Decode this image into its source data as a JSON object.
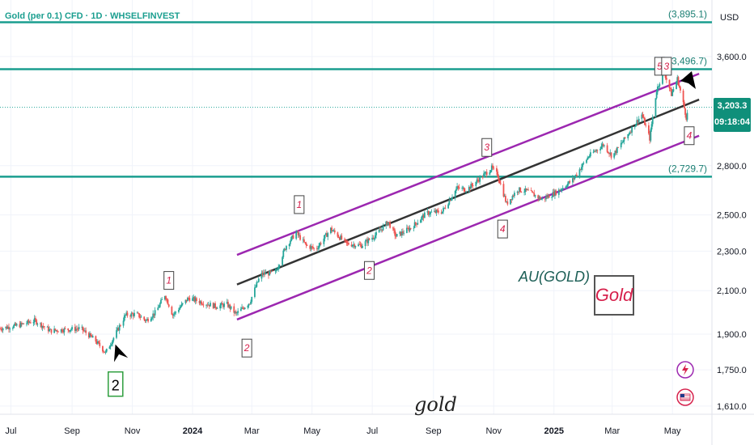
{
  "header": {
    "title": "Gold (per 0.1) CFD · 1D · WHSELFINVEST",
    "currency": "USD"
  },
  "price_tag": {
    "price": "3,203.3",
    "countdown": "09:18:04"
  },
  "labels": {
    "au_gold": "AU(GOLD)",
    "gold_box": "Gold",
    "gold_script": "gold"
  },
  "colors": {
    "up": "#26a69a",
    "down": "#ef5350",
    "level": "#1a9e8f",
    "channel": "#9c27b0",
    "midline": "#333333",
    "wave_label": "#d6204b"
  },
  "chart_data": {
    "type": "candlestick",
    "y_scale": "log",
    "ylim": [
      1580,
      4100
    ],
    "y_ticks": [
      {
        "v": 3600,
        "label": "3,600.0"
      },
      {
        "v": 2800,
        "label": "2,800.0"
      },
      {
        "v": 2500,
        "label": "2,500.0"
      },
      {
        "v": 2300,
        "label": "2,300.0"
      },
      {
        "v": 2100,
        "label": "2,100.0"
      },
      {
        "v": 1900,
        "label": "1,900.0"
      },
      {
        "v": 1750,
        "label": "1,750.0"
      },
      {
        "v": 1610,
        "label": "1,610.0"
      }
    ],
    "x_ticks": [
      {
        "t": "2023-07-01",
        "label": "Jul"
      },
      {
        "t": "2023-09-01",
        "label": "Sep"
      },
      {
        "t": "2023-11-01",
        "label": "Nov"
      },
      {
        "t": "2024-01-01",
        "label": "2024",
        "bold": true
      },
      {
        "t": "2024-03-01",
        "label": "Mar"
      },
      {
        "t": "2024-05-01",
        "label": "May"
      },
      {
        "t": "2024-07-01",
        "label": "Jul"
      },
      {
        "t": "2024-09-01",
        "label": "Sep"
      },
      {
        "t": "2024-11-01",
        "label": "Nov"
      },
      {
        "t": "2025-01-01",
        "label": "2025",
        "bold": true
      },
      {
        "t": "2025-03-01",
        "label": "Mar"
      },
      {
        "t": "2025-05-01",
        "label": "May"
      }
    ],
    "price_path": [
      [
        "2023-06-20",
        1925
      ],
      [
        "2023-07-10",
        1940
      ],
      [
        "2023-07-25",
        1960
      ],
      [
        "2023-08-10",
        1915
      ],
      [
        "2023-08-25",
        1920
      ],
      [
        "2023-09-10",
        1925
      ],
      [
        "2023-09-25",
        1870
      ],
      [
        "2023-10-05",
        1820
      ],
      [
        "2023-10-15",
        1900
      ],
      [
        "2023-10-25",
        1985
      ],
      [
        "2023-11-05",
        1990
      ],
      [
        "2023-11-15",
        1960
      ],
      [
        "2023-11-25",
        2000
      ],
      [
        "2023-12-04",
        2080
      ],
      [
        "2023-12-12",
        1985
      ],
      [
        "2023-12-28",
        2065
      ],
      [
        "2024-01-10",
        2045
      ],
      [
        "2024-01-25",
        2025
      ],
      [
        "2024-02-05",
        2035
      ],
      [
        "2024-02-14",
        1990
      ],
      [
        "2024-02-28",
        2045
      ],
      [
        "2024-03-10",
        2180
      ],
      [
        "2024-03-25",
        2190
      ],
      [
        "2024-04-05",
        2330
      ],
      [
        "2024-04-15",
        2400
      ],
      [
        "2024-04-25",
        2330
      ],
      [
        "2024-05-05",
        2310
      ],
      [
        "2024-05-20",
        2420
      ],
      [
        "2024-06-05",
        2340
      ],
      [
        "2024-06-20",
        2330
      ],
      [
        "2024-07-05",
        2390
      ],
      [
        "2024-07-17",
        2460
      ],
      [
        "2024-07-25",
        2380
      ],
      [
        "2024-08-10",
        2430
      ],
      [
        "2024-08-25",
        2510
      ],
      [
        "2024-09-10",
        2520
      ],
      [
        "2024-09-25",
        2660
      ],
      [
        "2024-10-05",
        2650
      ],
      [
        "2024-10-20",
        2730
      ],
      [
        "2024-10-30",
        2785
      ],
      [
        "2024-11-05",
        2740
      ],
      [
        "2024-11-14",
        2565
      ],
      [
        "2024-11-25",
        2650
      ],
      [
        "2024-12-05",
        2640
      ],
      [
        "2024-12-20",
        2590
      ],
      [
        "2025-01-05",
        2640
      ],
      [
        "2025-01-20",
        2710
      ],
      [
        "2025-02-05",
        2860
      ],
      [
        "2025-02-20",
        2940
      ],
      [
        "2025-03-01",
        2860
      ],
      [
        "2025-03-15",
        2990
      ],
      [
        "2025-03-31",
        3150
      ],
      [
        "2025-04-08",
        2980
      ],
      [
        "2025-04-15",
        3330
      ],
      [
        "2025-04-22",
        3490
      ],
      [
        "2025-04-30",
        3300
      ],
      [
        "2025-05-06",
        3420
      ],
      [
        "2025-05-12",
        3230
      ],
      [
        "2025-05-15",
        3130
      ],
      [
        "2025-05-18",
        3203
      ]
    ],
    "horizontal_levels": [
      {
        "v": 3895.1,
        "label": "(3,895.1)"
      },
      {
        "v": 3496.7,
        "label": "(3,496.7)"
      },
      {
        "v": 2729.7,
        "label": "(2,729.7)"
      }
    ],
    "channel": {
      "upper": [
        [
          "2024-02-15",
          2280
        ],
        [
          "2025-05-28",
          3460
        ]
      ],
      "middle": [
        [
          "2024-02-15",
          2130
        ],
        [
          "2025-05-28",
          3260
        ]
      ],
      "lower": [
        [
          "2024-02-15",
          1965
        ],
        [
          "2025-05-28",
          3000
        ]
      ]
    },
    "wave_labels": [
      {
        "t": "2023-10-15",
        "v": 1700,
        "label": "2",
        "style": "green-box"
      },
      {
        "t": "2023-12-08",
        "v": 2150,
        "label": "1"
      },
      {
        "t": "2024-02-25",
        "v": 1840,
        "label": "2"
      },
      {
        "t": "2024-04-18",
        "v": 2560,
        "label": "1"
      },
      {
        "t": "2024-06-28",
        "v": 2200,
        "label": "2"
      },
      {
        "t": "2024-10-25",
        "v": 2920,
        "label": "3"
      },
      {
        "t": "2024-11-10",
        "v": 2420,
        "label": "4"
      },
      {
        "t": "2025-04-18",
        "v": 3520,
        "label": "5"
      },
      {
        "t": "2025-04-25",
        "v": 3520,
        "label": "3"
      },
      {
        "t": "2025-05-18",
        "v": 3000,
        "label": "4"
      }
    ]
  }
}
